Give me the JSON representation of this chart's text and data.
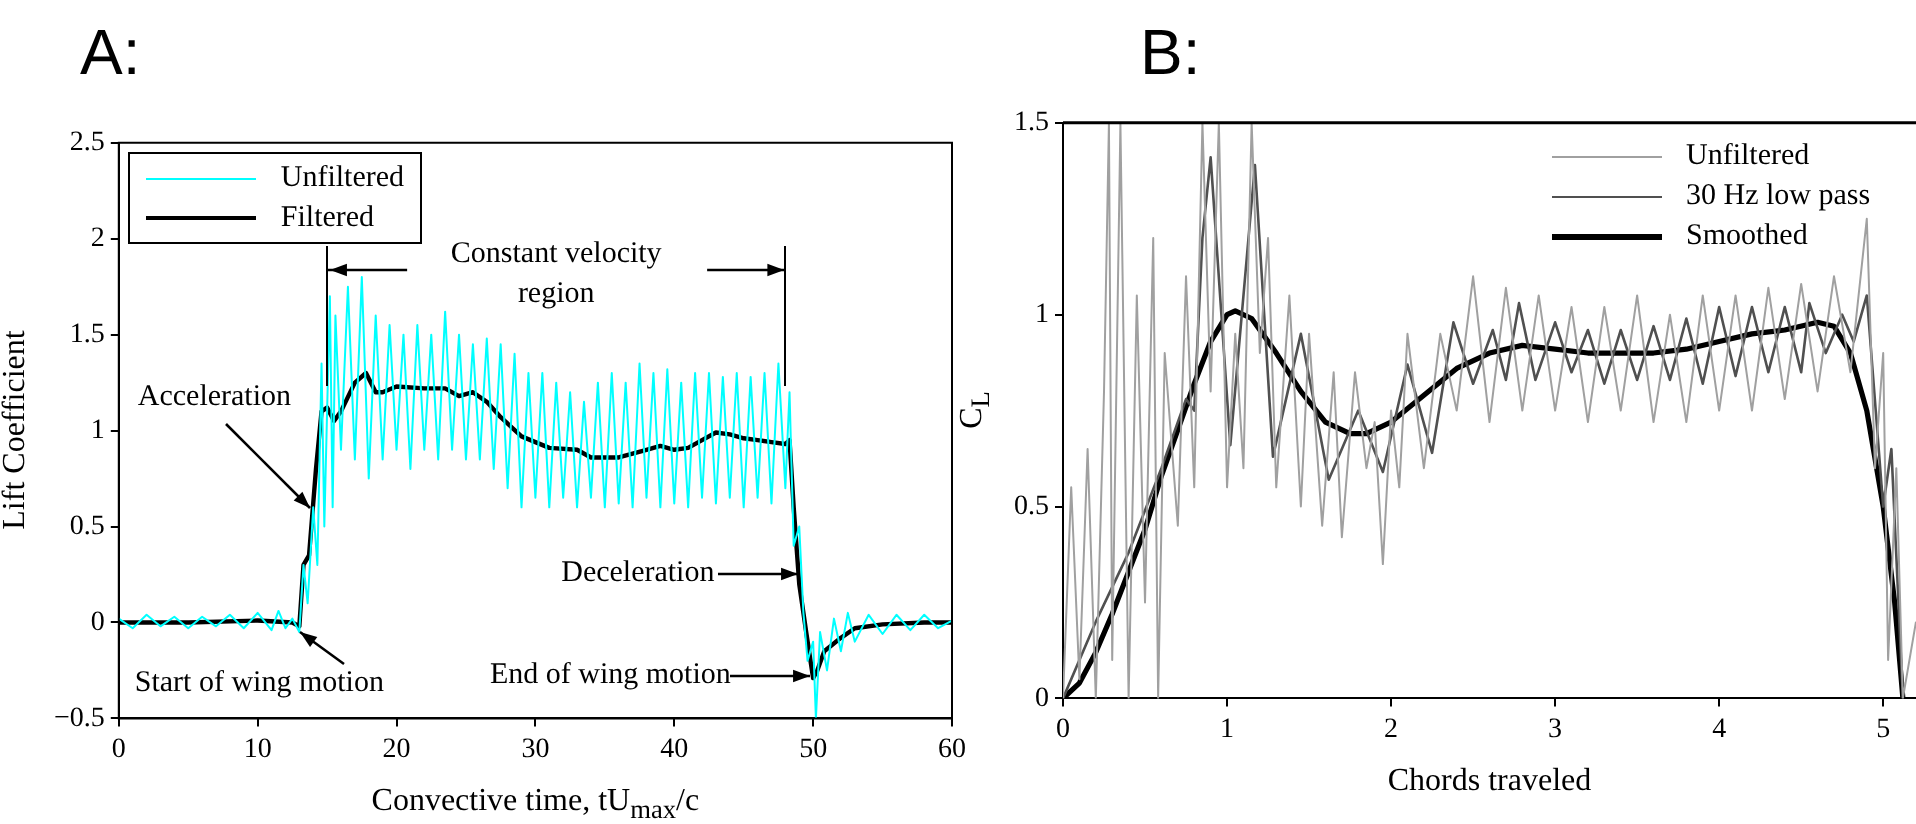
{
  "chart_data": [
    {
      "type": "line",
      "title": "A:",
      "xlabel": "Convective time, tU$_{max}$/c",
      "ylabel": "Lift Coefficient",
      "xlim": [
        0,
        60
      ],
      "xticks": [
        0,
        10,
        20,
        30,
        40,
        50,
        60
      ],
      "ylim": [
        -0.5,
        2.5
      ],
      "yticks": [
        {
          "value": -0.5,
          "label": "−0.5"
        },
        0,
        0.5,
        1,
        1.5,
        2,
        2.5
      ],
      "legend": "top left",
      "grid": false,
      "series": [
        {
          "name": "Unfiltered",
          "color": "#00ffff",
          "x": [
            0,
            1,
            2,
            3,
            4,
            5,
            6,
            7,
            8,
            9,
            10,
            11,
            11.5,
            12,
            12.5,
            13,
            13.3,
            13.6,
            14,
            14.3,
            14.6,
            14.8,
            15.2,
            15.4,
            15.6,
            16,
            16.5,
            17,
            17.5,
            18,
            18.5,
            19,
            19.5,
            20,
            20.5,
            21,
            21.5,
            22,
            22.5,
            23,
            23.5,
            24,
            24.5,
            25,
            25.5,
            26,
            26.5,
            27,
            27.5,
            28,
            28.5,
            29,
            29.5,
            30,
            30.5,
            31,
            31.5,
            32,
            32.5,
            33,
            33.5,
            34,
            34.5,
            35,
            35.5,
            36,
            36.5,
            37,
            37.5,
            38,
            38.5,
            39,
            39.5,
            40,
            40.5,
            41,
            41.5,
            42,
            42.5,
            43,
            43.5,
            44,
            44.5,
            45,
            45.5,
            46,
            46.5,
            47,
            47.5,
            48,
            48.3,
            48.6,
            49,
            49.3,
            49.6,
            50,
            50.2,
            50.5,
            51,
            51.5,
            52,
            52.5,
            53,
            54,
            55,
            56,
            57,
            58,
            59,
            60
          ],
          "values": [
            0.02,
            -0.03,
            0.04,
            -0.02,
            0.03,
            -0.03,
            0.03,
            -0.02,
            0.04,
            -0.03,
            0.05,
            -0.04,
            0.06,
            -0.03,
            0.02,
            -0.05,
            0.3,
            0.1,
            0.6,
            0.3,
            1.35,
            0.5,
            1.7,
            0.6,
            1.6,
            0.9,
            1.75,
            0.85,
            1.8,
            0.75,
            1.6,
            0.85,
            1.55,
            0.9,
            1.5,
            0.8,
            1.55,
            0.9,
            1.5,
            0.85,
            1.62,
            0.9,
            1.5,
            0.85,
            1.45,
            0.85,
            1.48,
            0.8,
            1.45,
            0.7,
            1.4,
            0.6,
            1.3,
            0.65,
            1.3,
            0.6,
            1.25,
            0.65,
            1.2,
            0.6,
            1.15,
            0.65,
            1.25,
            0.6,
            1.3,
            0.62,
            1.25,
            0.6,
            1.35,
            0.65,
            1.3,
            0.6,
            1.32,
            0.62,
            1.25,
            0.6,
            1.3,
            0.65,
            1.3,
            0.62,
            1.28,
            0.65,
            1.3,
            0.6,
            1.28,
            0.65,
            1.3,
            0.62,
            1.35,
            0.7,
            1.2,
            0.4,
            0.5,
            0.05,
            -0.2,
            -0.1,
            -0.5,
            -0.05,
            -0.25,
            0.02,
            -0.15,
            0.05,
            -0.1,
            0.04,
            -0.06,
            0.04,
            -0.04,
            0.04,
            -0.03,
            0.01
          ]
        },
        {
          "name": "Filtered",
          "color": "#000000",
          "x": [
            0,
            5,
            10,
            12.5,
            13,
            13.3,
            13.7,
            14.2,
            14.6,
            15,
            15.5,
            16,
            17,
            17.8,
            18.5,
            19,
            20,
            22,
            23.5,
            24.5,
            25.5,
            26.5,
            27.5,
            29,
            31,
            33,
            34,
            35,
            36,
            37,
            38,
            39,
            40,
            41,
            42,
            43,
            44,
            45,
            46,
            47,
            48,
            48.3,
            48.6,
            49,
            49.5,
            50,
            50.3,
            50.8,
            52,
            53,
            55,
            58,
            60
          ],
          "values": [
            0,
            0,
            0.01,
            0,
            -0.02,
            0.3,
            0.35,
            0.8,
            1.1,
            1.12,
            1.05,
            1.1,
            1.25,
            1.3,
            1.2,
            1.2,
            1.23,
            1.22,
            1.22,
            1.18,
            1.2,
            1.15,
            1.07,
            0.97,
            0.91,
            0.9,
            0.86,
            0.86,
            0.86,
            0.88,
            0.9,
            0.92,
            0.9,
            0.91,
            0.95,
            0.99,
            0.98,
            0.96,
            0.95,
            0.94,
            0.93,
            0.95,
            0.6,
            0.2,
            -0.05,
            -0.29,
            -0.25,
            -0.15,
            -0.08,
            -0.03,
            -0.01,
            0,
            0
          ]
        }
      ],
      "ref_lines": [
        {
          "axis": "x",
          "value": 15
        },
        {
          "axis": "x",
          "value": 48
        }
      ],
      "annotations": [
        "Constant velocity region",
        {
          "text": "Acceleration",
          "x": 13.8,
          "y": 0.6
        },
        {
          "text": "Start of wing motion",
          "x": 13,
          "y": -0.05
        },
        {
          "text": "Deceleration",
          "x": 48.9,
          "y": 0.25
        },
        {
          "text": "End of wing motion",
          "x": 49.8,
          "y": -0.28
        }
      ]
    },
    {
      "type": "line",
      "title": "B:",
      "xlabel": "Chords traveled",
      "ylabel": "C$_{L}$",
      "xlim": [
        0,
        5.2
      ],
      "xticks": [
        0,
        1,
        2,
        3,
        4,
        5
      ],
      "ylim": [
        0,
        1.5
      ],
      "yticks": [
        0,
        0.5,
        1,
        1.5
      ],
      "legend": "top right",
      "grid": false,
      "series": [
        {
          "name": "Unfiltered",
          "color": "#a0a0a0",
          "x": [
            0,
            0.05,
            0.1,
            0.15,
            0.2,
            0.25,
            0.28,
            0.3,
            0.35,
            0.4,
            0.45,
            0.5,
            0.55,
            0.58,
            0.62,
            0.7,
            0.75,
            0.8,
            0.85,
            0.9,
            0.95,
            1.0,
            1.05,
            1.1,
            1.15,
            1.2,
            1.25,
            1.3,
            1.38,
            1.45,
            1.5,
            1.58,
            1.65,
            1.7,
            1.78,
            1.85,
            1.9,
            1.95,
            2.0,
            2.05,
            2.1,
            2.2,
            2.3,
            2.4,
            2.5,
            2.6,
            2.7,
            2.8,
            2.9,
            3.0,
            3.1,
            3.2,
            3.3,
            3.4,
            3.5,
            3.6,
            3.7,
            3.8,
            3.9,
            4.0,
            4.1,
            4.2,
            4.3,
            4.4,
            4.5,
            4.6,
            4.7,
            4.8,
            4.9,
            4.95,
            5.0,
            5.03,
            5.08,
            5.12,
            5.2
          ],
          "values": [
            0,
            0.55,
            0.05,
            0.65,
            0,
            0.8,
            1.5,
            0.1,
            1.5,
            0,
            1.05,
            0.25,
            1.2,
            0,
            0.9,
            0.45,
            1.1,
            0.55,
            1.5,
            0.8,
            1.5,
            0.55,
            0.95,
            0.6,
            1.5,
            0.9,
            1.2,
            0.55,
            1.05,
            0.5,
            0.95,
            0.45,
            0.85,
            0.42,
            0.85,
            0.6,
            0.72,
            0.35,
            0.75,
            0.55,
            0.95,
            0.6,
            0.95,
            0.75,
            1.1,
            0.72,
            1.07,
            0.75,
            1.05,
            0.75,
            1.02,
            0.72,
            1.02,
            0.75,
            1.05,
            0.72,
            1.0,
            0.72,
            1.05,
            0.75,
            1.05,
            0.75,
            1.07,
            0.78,
            1.08,
            0.8,
            1.1,
            0.85,
            1.25,
            0.6,
            0.9,
            0.1,
            0.6,
            0,
            0.2
          ]
        },
        {
          "name": "30 Hz low pass",
          "color": "#505050",
          "x": [
            0,
            0.2,
            0.4,
            0.6,
            0.75,
            0.8,
            0.85,
            0.9,
            1.02,
            1.17,
            1.28,
            1.45,
            1.62,
            1.8,
            1.95,
            2.1,
            2.25,
            2.38,
            2.5,
            2.62,
            2.7,
            2.78,
            2.88,
            3.0,
            3.1,
            3.2,
            3.3,
            3.4,
            3.5,
            3.6,
            3.7,
            3.8,
            3.9,
            4.0,
            4.1,
            4.2,
            4.3,
            4.4,
            4.5,
            4.55,
            4.65,
            4.75,
            4.82,
            4.9,
            5.0,
            5.05,
            5.12
          ],
          "values": [
            0,
            0.2,
            0.38,
            0.6,
            0.78,
            0.75,
            1.2,
            1.41,
            0.66,
            1.39,
            0.63,
            0.95,
            0.57,
            0.75,
            0.59,
            0.87,
            0.64,
            0.98,
            0.82,
            0.96,
            0.83,
            1.03,
            0.83,
            0.98,
            0.85,
            0.96,
            0.82,
            0.96,
            0.83,
            0.97,
            0.83,
            0.99,
            0.82,
            1.02,
            0.84,
            1.02,
            0.85,
            1.02,
            0.85,
            1.03,
            0.9,
            1.0,
            0.93,
            1.05,
            0.5,
            0.65,
            0
          ]
        },
        {
          "name": "Smoothed",
          "color": "#000000",
          "x": [
            0,
            0.1,
            0.2,
            0.3,
            0.4,
            0.5,
            0.6,
            0.7,
            0.8,
            0.9,
            1.0,
            1.05,
            1.15,
            1.3,
            1.45,
            1.6,
            1.75,
            1.85,
            2.0,
            2.2,
            2.4,
            2.6,
            2.8,
            3.0,
            3.2,
            3.4,
            3.6,
            3.8,
            4.0,
            4.2,
            4.4,
            4.6,
            4.7,
            4.8,
            4.9,
            5.0,
            5.07,
            5.12
          ],
          "values": [
            0,
            0.04,
            0.12,
            0.22,
            0.33,
            0.44,
            0.58,
            0.7,
            0.82,
            0.93,
            1.0,
            1.01,
            0.99,
            0.9,
            0.8,
            0.72,
            0.69,
            0.69,
            0.72,
            0.79,
            0.86,
            0.9,
            0.92,
            0.91,
            0.9,
            0.9,
            0.9,
            0.91,
            0.93,
            0.95,
            0.96,
            0.98,
            0.97,
            0.9,
            0.75,
            0.5,
            0.25,
            0
          ]
        }
      ]
    }
  ]
}
